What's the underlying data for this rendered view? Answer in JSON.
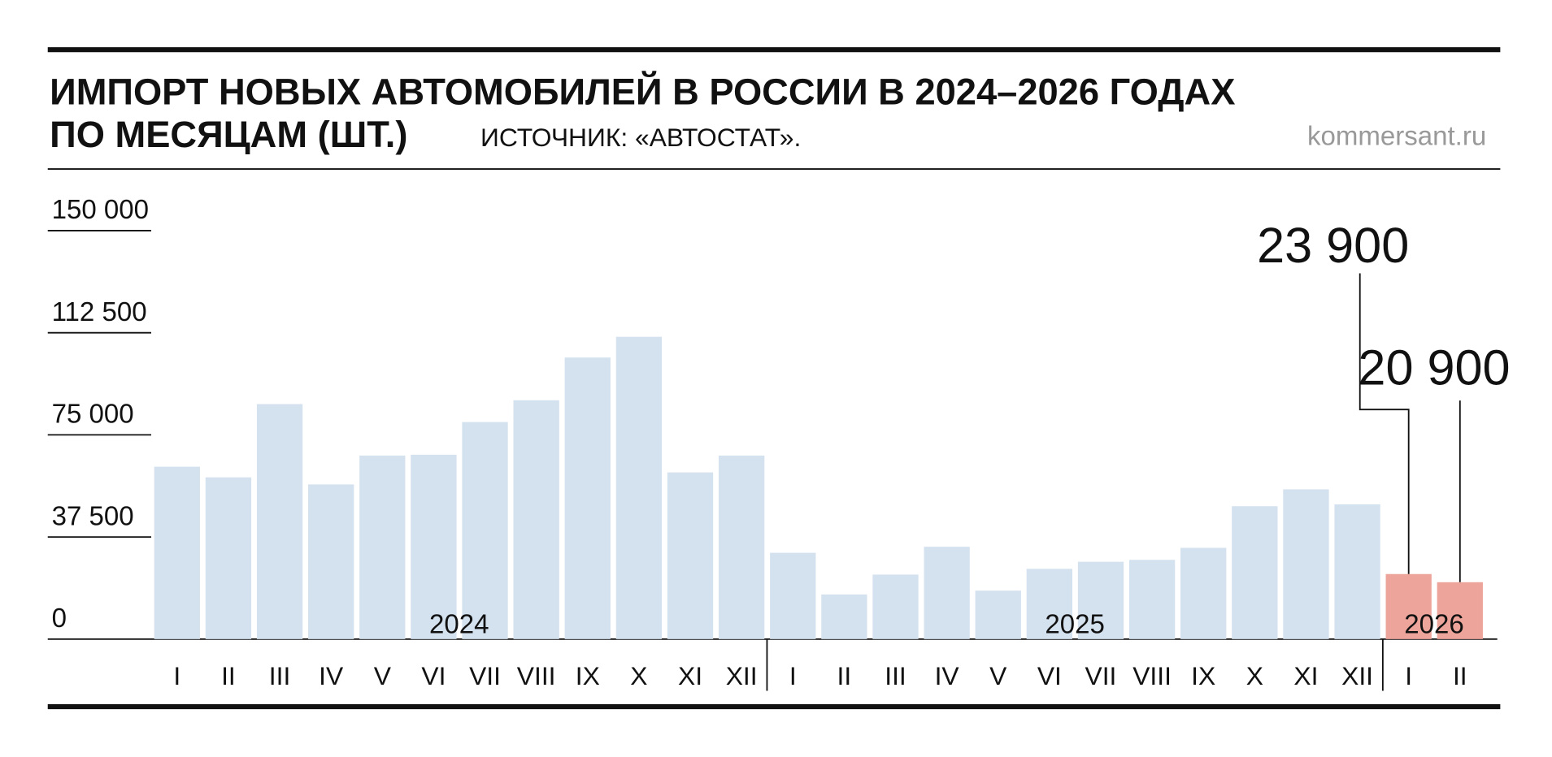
{
  "chart_data": {
    "type": "bar",
    "title": "ИМПОРТ НОВЫХ АВТОМОБИЛЕЙ В РОССИИ В 2024–2026 ГОДАХ",
    "subtitle": "ПО МЕСЯЦАМ (ШТ.)",
    "source": "ИСТОЧНИК: «АВТОСТАТ».",
    "site": "kommersant.ru",
    "ylim": [
      0,
      150000
    ],
    "yticks": [
      0,
      {
        "value": 37500,
        "label": "37 500"
      },
      {
        "value": 75000,
        "label": "75 000"
      },
      {
        "value": 112500,
        "label": "112 500"
      },
      {
        "value": 150000,
        "label": "150 000"
      }
    ],
    "groups": [
      {
        "name": "2024",
        "color": "#d4e1ee",
        "categories": [
          "I",
          "II",
          "III",
          "IV",
          "V",
          "VI",
          "VII",
          "VIII",
          "IX",
          "X",
          "XI",
          "XII"
        ],
        "values": [
          63300,
          59400,
          86300,
          56800,
          67400,
          67700,
          79700,
          87700,
          103400,
          111000,
          61200,
          67400
        ]
      },
      {
        "name": "2025",
        "color": "#d4e1ee",
        "categories": [
          "I",
          "II",
          "III",
          "IV",
          "V",
          "VI",
          "VII",
          "VIII",
          "IX",
          "X",
          "XI",
          "XII"
        ],
        "values": [
          31700,
          16400,
          23700,
          33900,
          17800,
          25800,
          28400,
          29100,
          33500,
          48800,
          55000,
          49500
        ]
      },
      {
        "name": "2026",
        "color": "#eda59b",
        "categories": [
          "I",
          "II"
        ],
        "values": [
          23900,
          20900
        ],
        "value_labels": [
          "23 900",
          "20 900"
        ]
      }
    ]
  }
}
